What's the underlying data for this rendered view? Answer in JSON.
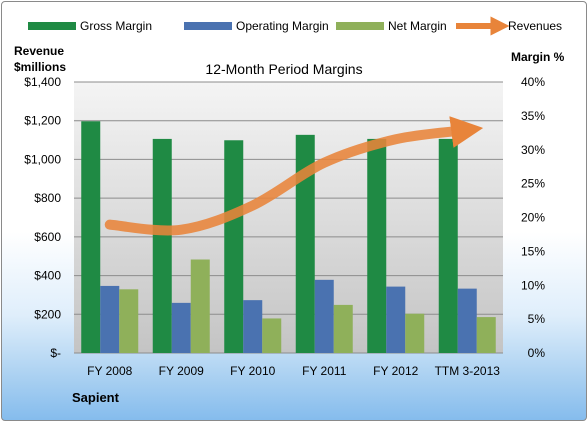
{
  "chart_data": {
    "type": "bar",
    "title": "12-Month Period Margins",
    "categories": [
      "FY 2008",
      "FY 2009",
      "FY 2010",
      "FY 2011",
      "FY 2012",
      "TTM 3-2013"
    ],
    "series": [
      {
        "name": "Gross Margin",
        "axis": "right",
        "color": "#1f8a44",
        "values": [
          34.2,
          31.6,
          31.4,
          32.2,
          31.6,
          31.6
        ]
      },
      {
        "name": "Operating Margin",
        "axis": "right",
        "color": "#4a72b0",
        "values": [
          9.9,
          7.4,
          7.8,
          10.8,
          9.8,
          9.5
        ]
      },
      {
        "name": "Net Margin",
        "axis": "right",
        "color": "#8fb05a",
        "values": [
          9.4,
          13.8,
          5.1,
          7.1,
          5.8,
          5.3
        ]
      },
      {
        "name": "Revenues",
        "type": "line",
        "axis": "left",
        "color": "#e8843a",
        "values": [
          663,
          637,
          762,
          983,
          1104,
          1152
        ]
      }
    ],
    "left_axis": {
      "label": [
        "Revenue",
        "$millions"
      ],
      "range": [
        0,
        1400
      ],
      "ticks": [
        "$-",
        "$200",
        "$400",
        "$600",
        "$800",
        "$1,000",
        "$1,200",
        "$1,400"
      ]
    },
    "right_axis": {
      "label": "Margin %",
      "range": [
        0,
        40
      ],
      "ticks": [
        "0%",
        "5%",
        "10%",
        "15%",
        "20%",
        "25%",
        "30%",
        "35%",
        "40%"
      ]
    },
    "grid": true,
    "legend_position": "top",
    "company": "Sapient"
  }
}
